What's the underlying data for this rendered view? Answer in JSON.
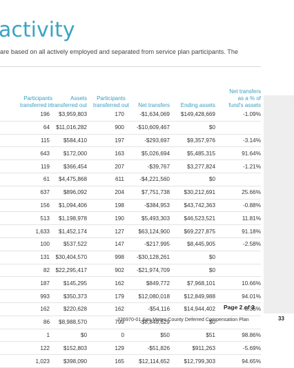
{
  "title": "activity",
  "subtitle": "are based on all actively employed and separated from service plan participants. The",
  "headers": {
    "participants_in": [
      "Participants",
      "transferred in"
    ],
    "assets_out": [
      "Assets",
      "transferred out"
    ],
    "participants_out": [
      "Participants",
      "transferred out"
    ],
    "net_transfers": [
      "Net transfers"
    ],
    "ending_assets": [
      "Ending assets"
    ],
    "pct": [
      "Net transfers",
      "as a % of",
      "fund's assets"
    ]
  },
  "rows": [
    {
      "pin": "196",
      "aout": "$3,959,803",
      "pout": "170",
      "net": "-$1,634,069",
      "end": "$149,428,669",
      "pct": "-1.09%"
    },
    {
      "pin": "64",
      "aout": "$11,016,282",
      "pout": "900",
      "net": "-$10,609,467",
      "end": "$0",
      "pct": ""
    },
    {
      "pin": "115",
      "aout": "$584,410",
      "pout": "197",
      "net": "-$293,697",
      "end": "$9,357,976",
      "pct": "-3.14%"
    },
    {
      "pin": "643",
      "aout": "$172,000",
      "pout": "163",
      "net": "$5,026,694",
      "end": "$5,485,315",
      "pct": "91.64%"
    },
    {
      "pin": "119",
      "aout": "$366,454",
      "pout": "207",
      "net": "-$39,767",
      "end": "$3,277,824",
      "pct": "-1.21%"
    },
    {
      "pin": "61",
      "aout": "$4,475,868",
      "pout": "611",
      "net": "-$4,221,560",
      "end": "$0",
      "pct": ""
    },
    {
      "pin": "637",
      "aout": "$896,092",
      "pout": "204",
      "net": "$7,751,738",
      "end": "$30,212,691",
      "pct": "25.66%"
    },
    {
      "pin": "156",
      "aout": "$1,094,406",
      "pout": "198",
      "net": "-$384,953",
      "end": "$43,742,363",
      "pct": "-0.88%"
    },
    {
      "pin": "513",
      "aout": "$1,198,978",
      "pout": "190",
      "net": "$5,493,303",
      "end": "$46,523,521",
      "pct": "11.81%"
    },
    {
      "pin": "1,633",
      "aout": "$1,452,174",
      "pout": "127",
      "net": "$63,124,900",
      "end": "$69,227,875",
      "pct": "91.18%"
    },
    {
      "pin": "100",
      "aout": "$537,522",
      "pout": "147",
      "net": "-$217,995",
      "end": "$8,445,905",
      "pct": "-2.58%"
    },
    {
      "pin": "131",
      "aout": "$30,404,570",
      "pout": "998",
      "net": "-$30,128,261",
      "end": "$0",
      "pct": ""
    },
    {
      "pin": "82",
      "aout": "$22,295,417",
      "pout": "902",
      "net": "-$21,974,709",
      "end": "$0",
      "pct": ""
    },
    {
      "pin": "187",
      "aout": "$145,295",
      "pout": "162",
      "net": "$849,772",
      "end": "$7,968,101",
      "pct": "10.66%"
    },
    {
      "pin": "993",
      "aout": "$350,373",
      "pout": "179",
      "net": "$12,080,018",
      "end": "$12,849,988",
      "pct": "94.01%"
    },
    {
      "pin": "162",
      "aout": "$220,628",
      "pout": "162",
      "net": "-$54,116",
      "end": "$14,944,402",
      "pct": "-0.36%"
    },
    {
      "pin": "86",
      "aout": "$8,988,570",
      "pout": "799",
      "net": "-$8,849,629",
      "end": "$0",
      "pct": ""
    },
    {
      "pin": "1",
      "aout": "$0",
      "pout": "0",
      "net": "$50",
      "end": "$51",
      "pct": "98.86%"
    },
    {
      "pin": "122",
      "aout": "$152,803",
      "pout": "129",
      "net": "-$51,826",
      "end": "$911,263",
      "pct": "-5.69%"
    },
    {
      "pin": "1,023",
      "aout": "$398,090",
      "pout": "165",
      "net": "$12,114,652",
      "end": "$12,799,303",
      "pct": "94.65%"
    }
  ],
  "footer": {
    "page": "Page 2 of 3",
    "plan": "776970-01 San Mateo County Deferred Compensation Plan",
    "page_number": "33"
  },
  "colors": {
    "accent": "#3aa3c4",
    "header_text": "#3a9cbf",
    "negative": "#d9322a"
  }
}
